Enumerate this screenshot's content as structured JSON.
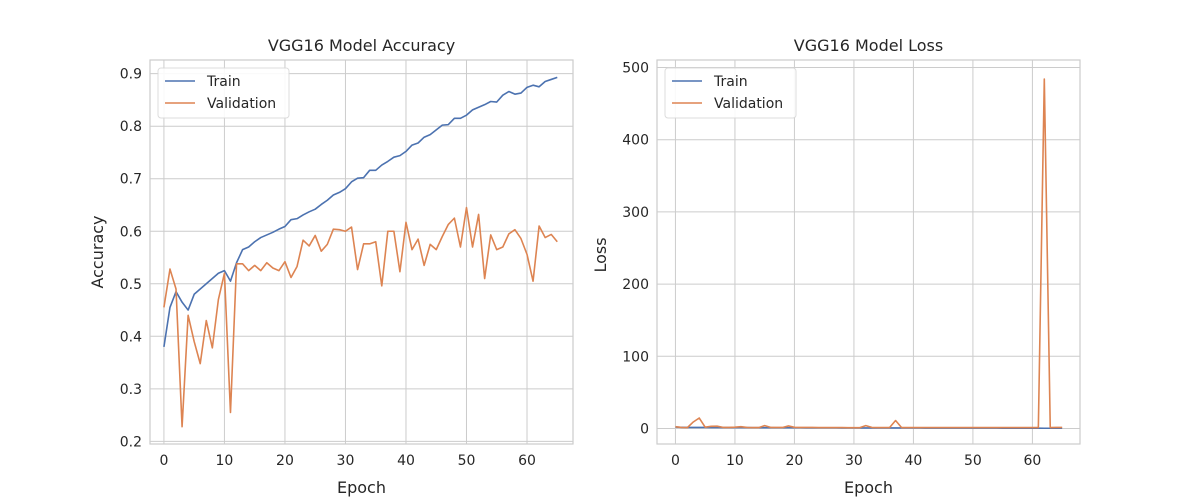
{
  "colors": {
    "train": "#4c72b0",
    "validation": "#dd8452"
  },
  "chart_data": [
    {
      "type": "line",
      "title": "VGG16 Model Accuracy",
      "xlabel": "Epoch",
      "ylabel": "Accuracy",
      "xlim": [
        -2.3,
        67.6
      ],
      "ylim": [
        0.195,
        0.926
      ],
      "xticks": [
        0,
        10,
        20,
        30,
        40,
        50,
        60
      ],
      "yticks": [
        0.2,
        0.3,
        0.4,
        0.5,
        0.6,
        0.7,
        0.8,
        0.9
      ],
      "ytick_labels": [
        "0.2",
        "0.3",
        "0.4",
        "0.5",
        "0.6",
        "0.7",
        "0.8",
        "0.9"
      ],
      "grid": true,
      "legend_position": "top-left",
      "series": [
        {
          "name": "Train",
          "color_key": "train",
          "values": [
            0.38,
            0.455,
            0.485,
            0.465,
            0.45,
            0.48,
            0.49,
            0.5,
            0.51,
            0.52,
            0.525,
            0.505,
            0.54,
            0.565,
            0.57,
            0.58,
            0.588,
            0.593,
            0.598,
            0.604,
            0.609,
            0.622,
            0.624,
            0.631,
            0.637,
            0.642,
            0.651,
            0.659,
            0.669,
            0.674,
            0.681,
            0.694,
            0.701,
            0.702,
            0.716,
            0.716,
            0.726,
            0.733,
            0.741,
            0.744,
            0.752,
            0.764,
            0.768,
            0.779,
            0.784,
            0.793,
            0.802,
            0.803,
            0.815,
            0.815,
            0.821,
            0.831,
            0.836,
            0.841,
            0.847,
            0.846,
            0.859,
            0.866,
            0.861,
            0.863,
            0.874,
            0.878,
            0.875,
            0.885,
            0.889,
            0.893
          ]
        },
        {
          "name": "Validation",
          "color_key": "validation",
          "values": [
            0.455,
            0.528,
            0.49,
            0.228,
            0.44,
            0.39,
            0.348,
            0.43,
            0.378,
            0.47,
            0.52,
            0.255,
            0.538,
            0.538,
            0.525,
            0.535,
            0.525,
            0.54,
            0.53,
            0.525,
            0.542,
            0.512,
            0.533,
            0.583,
            0.572,
            0.592,
            0.562,
            0.575,
            0.604,
            0.603,
            0.6,
            0.608,
            0.527,
            0.576,
            0.576,
            0.58,
            0.496,
            0.6,
            0.6,
            0.523,
            0.617,
            0.565,
            0.585,
            0.535,
            0.575,
            0.565,
            0.59,
            0.613,
            0.625,
            0.57,
            0.645,
            0.57,
            0.632,
            0.51,
            0.593,
            0.565,
            0.57,
            0.595,
            0.603,
            0.586,
            0.556,
            0.505,
            0.61,
            0.588,
            0.594,
            0.58
          ]
        }
      ]
    },
    {
      "type": "line",
      "title": "VGG16 Model Loss",
      "xlabel": "Epoch",
      "ylabel": "Loss",
      "xlim": [
        -3.1,
        68.0
      ],
      "ylim": [
        -21.5,
        510.4
      ],
      "xticks": [
        0,
        10,
        20,
        30,
        40,
        50,
        60
      ],
      "yticks": [
        0,
        100,
        200,
        300,
        400,
        500
      ],
      "ytick_labels": [
        "0",
        "100",
        "200",
        "300",
        "400",
        "500"
      ],
      "grid": true,
      "legend_position": "top-left",
      "series": [
        {
          "name": "Train",
          "color_key": "train",
          "values": [
            1.9,
            1.6,
            1.5,
            1.5,
            1.4,
            1.4,
            1.3,
            1.3,
            1.3,
            1.2,
            1.2,
            1.2,
            1.2,
            1.1,
            1.1,
            1.1,
            1.1,
            1.0,
            1.0,
            1.0,
            1.0,
            1.0,
            0.9,
            0.9,
            0.9,
            0.9,
            0.9,
            0.9,
            0.8,
            0.8,
            0.8,
            0.8,
            0.8,
            0.8,
            0.8,
            0.7,
            0.7,
            0.7,
            0.7,
            0.7,
            0.7,
            0.7,
            0.6,
            0.6,
            0.6,
            0.6,
            0.6,
            0.6,
            0.5,
            0.5,
            0.5,
            0.5,
            0.5,
            0.5,
            0.5,
            0.4,
            0.4,
            0.4,
            0.4,
            0.4,
            0.4,
            0.4,
            0.3,
            0.3,
            0.3,
            0.3
          ]
        },
        {
          "name": "Validation",
          "color_key": "validation",
          "values": [
            2.5,
            1.5,
            1.2,
            9.0,
            14.5,
            1.8,
            3.0,
            3.2,
            1.5,
            1.5,
            1.8,
            2.5,
            1.5,
            1.3,
            1.2,
            4.0,
            1.5,
            1.5,
            1.4,
            3.5,
            1.6,
            1.5,
            1.4,
            1.4,
            1.3,
            1.3,
            1.2,
            1.2,
            1.2,
            1.1,
            1.1,
            1.1,
            4.0,
            1.5,
            1.3,
            1.3,
            1.3,
            11.0,
            1.3,
            1.3,
            1.3,
            1.3,
            1.3,
            1.3,
            1.3,
            1.3,
            1.3,
            1.3,
            1.3,
            1.3,
            1.3,
            1.3,
            1.3,
            1.3,
            1.3,
            1.3,
            1.3,
            1.3,
            1.3,
            1.3,
            1.3,
            1.3,
            484.0,
            1.3,
            1.4,
            1.4
          ]
        }
      ]
    }
  ]
}
